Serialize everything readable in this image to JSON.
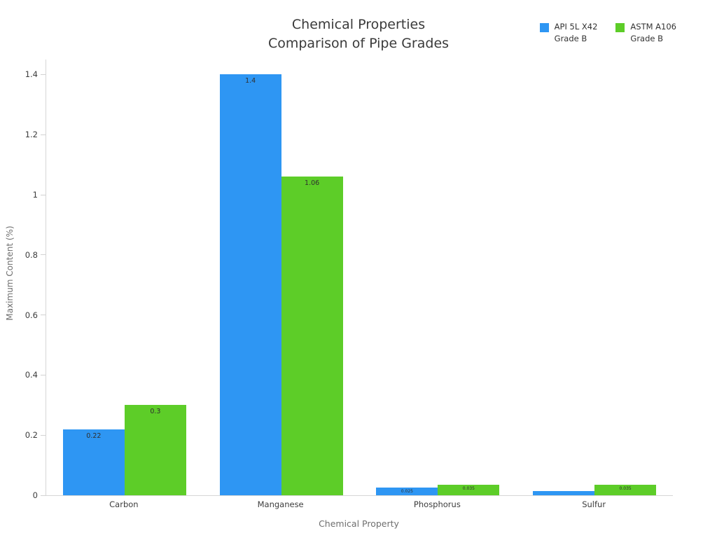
{
  "chart_data": {
    "type": "bar",
    "title": "Chemical Properties\nComparison of Pipe Grades",
    "xlabel": "Chemical Property",
    "ylabel": "Maximum Content (%)",
    "categories": [
      "Carbon",
      "Manganese",
      "Phosphorus",
      "Sulfur"
    ],
    "series": [
      {
        "name": "API 5L X42\nGrade B",
        "color": "#2e96f3",
        "values": [
          0.22,
          1.4,
          0.025,
          0.015
        ],
        "labels": [
          "0.22",
          "1.4",
          "0.025",
          ""
        ]
      },
      {
        "name": "ASTM A106\nGrade B",
        "color": "#5dcd28",
        "values": [
          0.3,
          1.06,
          0.035,
          0.035
        ],
        "labels": [
          "0.3",
          "1.06",
          "0.035",
          "0.035"
        ]
      }
    ],
    "y_ticks": [
      "0",
      "0.2",
      "0.4",
      "0.6",
      "0.8",
      "1",
      "1.2",
      "1.4"
    ],
    "y_tick_values": [
      0,
      0.2,
      0.4,
      0.6,
      0.8,
      1.0,
      1.2,
      1.4
    ],
    "ylim": [
      0,
      1.45
    ],
    "grid": false,
    "legend_position": "top-right",
    "background": "#ffffff"
  }
}
